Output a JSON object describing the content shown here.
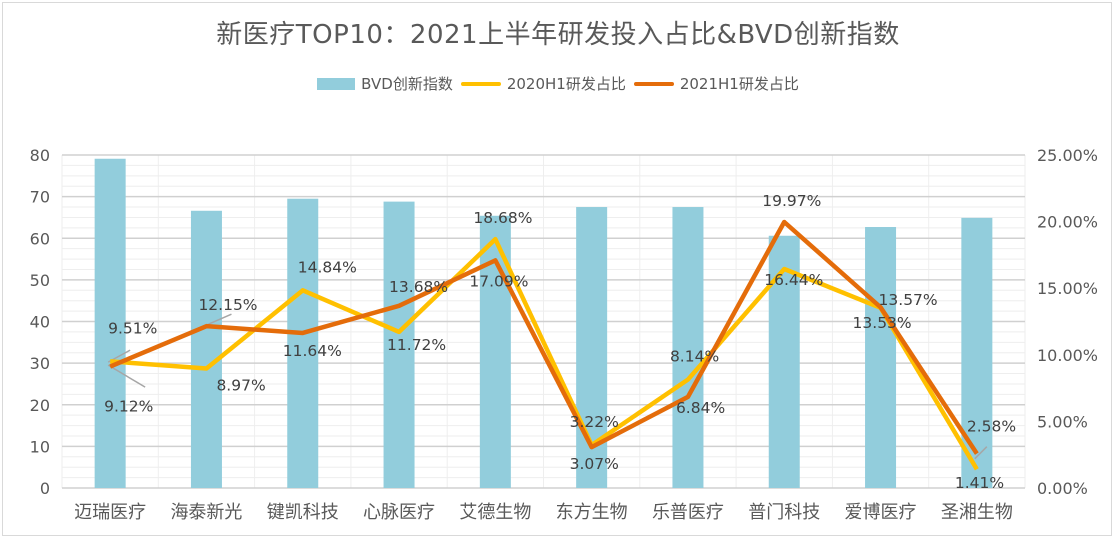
{
  "chart_data": {
    "type": "bar+line",
    "title": "新医疗TOP10：2021上半年研发投入占比&BVD创新指数",
    "categories": [
      "迈瑞医疗",
      "海泰新光",
      "键凯科技",
      "心脉医疗",
      "艾德生物",
      "东方生物",
      "乐普医疗",
      "普门科技",
      "爱博医疗",
      "圣湘生物"
    ],
    "series": [
      {
        "name": "BVD创新指数",
        "type": "bar",
        "axis": "left",
        "color": "#92CDDC",
        "values": [
          79.1,
          66.6,
          69.5,
          68.8,
          65.4,
          67.5,
          67.5,
          60.6,
          62.7,
          64.9
        ]
      },
      {
        "name": "2020H1研发占比",
        "type": "line",
        "axis": "right",
        "color": "#FFC000",
        "values": [
          9.51,
          8.97,
          14.84,
          11.72,
          18.68,
          3.22,
          8.14,
          16.44,
          13.53,
          1.41
        ],
        "labels": [
          "9.51%",
          "8.97%",
          "14.84%",
          "11.72%",
          "18.68%",
          "3.22%",
          "8.14%",
          "16.44%",
          "13.53%",
          "1.41%"
        ]
      },
      {
        "name": "2021H1研发占比",
        "type": "line",
        "axis": "right",
        "color": "#E46C0A",
        "values": [
          9.12,
          12.15,
          11.64,
          13.68,
          17.09,
          3.07,
          6.84,
          19.97,
          13.57,
          2.58
        ],
        "labels": [
          "9.12%",
          "12.15%",
          "11.64%",
          "13.68%",
          "17.09%",
          "3.07%",
          "6.84%",
          "19.97%",
          "13.57%",
          "2.58%"
        ]
      }
    ],
    "left_axis": {
      "min": 0,
      "max": 80,
      "step": 10,
      "ticks": [
        "0",
        "10",
        "20",
        "30",
        "40",
        "50",
        "60",
        "70",
        "80"
      ]
    },
    "right_axis": {
      "min": 0,
      "max": 25,
      "step": 5,
      "ticks": [
        "0.00%",
        "5.00%",
        "10.00%",
        "15.00%",
        "20.00%",
        "25.00%"
      ]
    },
    "grid": true,
    "legend_position": "top"
  }
}
